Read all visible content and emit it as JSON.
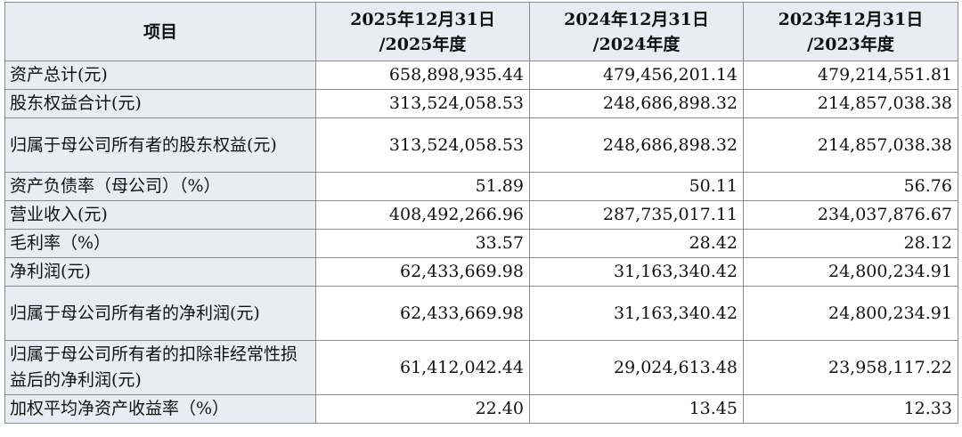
{
  "table": {
    "header": {
      "item": "项目",
      "periods": [
        {
          "line1": "2025年12月31日",
          "line2": "/2025年度"
        },
        {
          "line1": "2024年12月31日",
          "line2": "/2024年度"
        },
        {
          "line1": "2023年12月31日",
          "line2": "/2023年度"
        }
      ]
    },
    "rows": [
      {
        "label": "资产总计(元)",
        "values": [
          "658,898,935.44",
          "479,456,201.14",
          "479,214,551.81"
        ]
      },
      {
        "label": "股东权益合计(元)",
        "values": [
          "313,524,058.53",
          "248,686,898.32",
          "214,857,038.38"
        ]
      },
      {
        "label": "归属于母公司所有者的股东权益(元)",
        "values": [
          "313,524,058.53",
          "248,686,898.32",
          "214,857,038.38"
        ]
      },
      {
        "label": "资产负债率（母公司）（%）",
        "values": [
          "51.89",
          "50.11",
          "56.76"
        ]
      },
      {
        "label": "营业收入(元)",
        "values": [
          "408,492,266.96",
          "287,735,017.11",
          "234,037,876.67"
        ]
      },
      {
        "label": "毛利率（%）",
        "values": [
          "33.57",
          "28.42",
          "28.12"
        ]
      },
      {
        "label": "净利润(元)",
        "values": [
          "62,433,669.98",
          "31,163,340.42",
          "24,800,234.91"
        ]
      },
      {
        "label": "归属于母公司所有者的净利润(元)",
        "values": [
          "62,433,669.98",
          "31,163,340.42",
          "24,800,234.91"
        ]
      },
      {
        "label": "归属于母公司所有者的扣除非经常性损益后的净利润(元)",
        "values": [
          "61,412,042.44",
          "29,024,613.48",
          "23,958,117.22"
        ]
      },
      {
        "label": "加权平均净资产收益率（%）",
        "values": [
          "22.40",
          "13.45",
          "12.33"
        ]
      }
    ]
  }
}
